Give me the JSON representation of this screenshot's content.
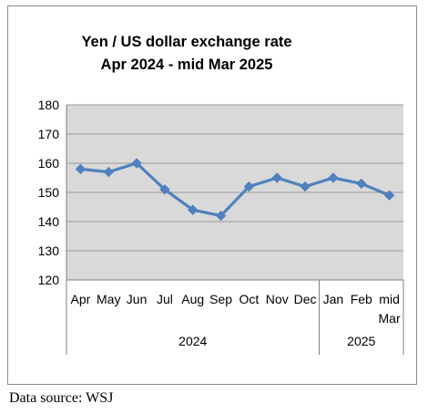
{
  "chart_data": {
    "type": "line",
    "title_lines": [
      "Yen / US dollar exchange rate",
      "Apr 2024  - mid Mar 2025"
    ],
    "xlabel": "",
    "ylabel": "",
    "categories": [
      "Apr",
      "May",
      "Jun",
      "Jul",
      "Aug",
      "Sep",
      "Oct",
      "Nov",
      "Dec",
      "Jan",
      "Feb",
      "mid Mar"
    ],
    "category_lines": [
      [
        "Apr"
      ],
      [
        "May"
      ],
      [
        "Jun"
      ],
      [
        "Jul"
      ],
      [
        "Aug"
      ],
      [
        "Sep"
      ],
      [
        "Oct"
      ],
      [
        "Nov"
      ],
      [
        "Dec"
      ],
      [
        "Jan"
      ],
      [
        "Feb"
      ],
      [
        "mid",
        "Mar"
      ]
    ],
    "year_groups": [
      {
        "label": "2024",
        "count": 9
      },
      {
        "label": "2025",
        "count": 3
      }
    ],
    "series": [
      {
        "values": [
          158,
          157,
          160,
          151,
          144,
          142,
          152,
          155,
          152,
          155,
          153,
          149
        ]
      }
    ],
    "ylim": [
      120,
      180
    ],
    "yticks": [
      120,
      130,
      140,
      150,
      160,
      170,
      180
    ],
    "grid": true,
    "legend": "none",
    "colors": {
      "line": "#4f81bd",
      "plot_background": "#d9d9d9",
      "grid": "#9a9a9a"
    }
  },
  "footer": {
    "source": "Data source: WSJ"
  }
}
